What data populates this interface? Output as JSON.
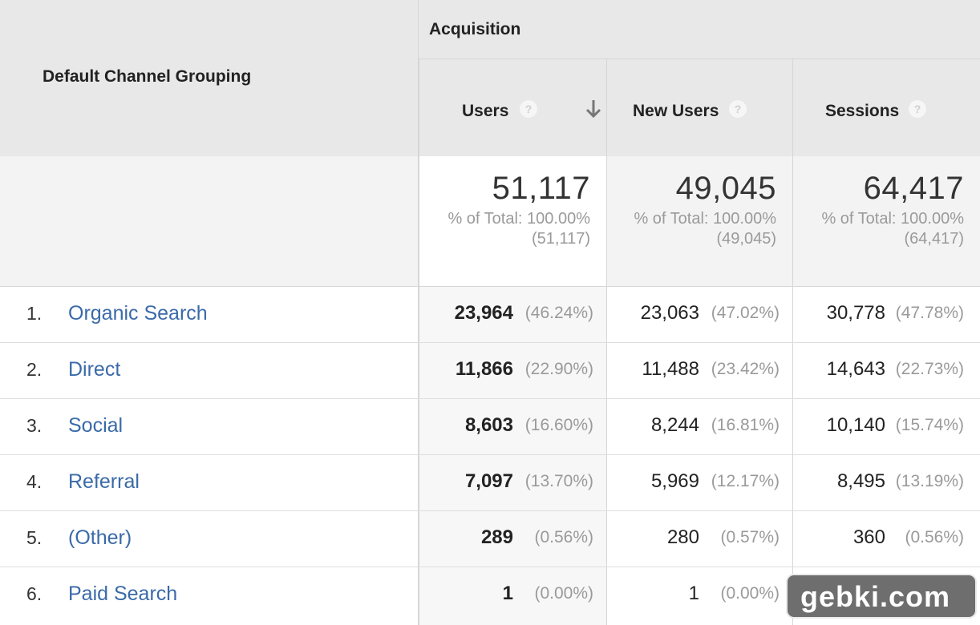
{
  "header": {
    "dimension_label": "Default Channel Grouping",
    "group_label": "Acquisition",
    "columns": [
      {
        "label": "Users",
        "help": "?"
      },
      {
        "label": "New Users",
        "help": "?"
      },
      {
        "label": "Sessions",
        "help": "?"
      }
    ]
  },
  "totals": [
    {
      "value": "51,117",
      "pct_line": "% of Total: 100.00%",
      "abs_line": "(51,117)"
    },
    {
      "value": "49,045",
      "pct_line": "% of Total: 100.00%",
      "abs_line": "(49,045)"
    },
    {
      "value": "64,417",
      "pct_line": "% of Total: 100.00%",
      "abs_line": "(64,417)"
    }
  ],
  "rows": [
    {
      "index": "1.",
      "channel": "Organic Search",
      "users": "23,964",
      "users_pct": "(46.24%)",
      "new_users": "23,063",
      "new_users_pct": "(47.02%)",
      "sessions": "30,778",
      "sessions_pct": "(47.78%)"
    },
    {
      "index": "2.",
      "channel": "Direct",
      "users": "11,866",
      "users_pct": "(22.90%)",
      "new_users": "11,488",
      "new_users_pct": "(23.42%)",
      "sessions": "14,643",
      "sessions_pct": "(22.73%)"
    },
    {
      "index": "3.",
      "channel": "Social",
      "users": "8,603",
      "users_pct": "(16.60%)",
      "new_users": "8,244",
      "new_users_pct": "(16.81%)",
      "sessions": "10,140",
      "sessions_pct": "(15.74%)"
    },
    {
      "index": "4.",
      "channel": "Referral",
      "users": "7,097",
      "users_pct": "(13.70%)",
      "new_users": "5,969",
      "new_users_pct": "(12.17%)",
      "sessions": "8,495",
      "sessions_pct": "(13.19%)"
    },
    {
      "index": "5.",
      "channel": "(Other)",
      "users": "289",
      "users_pct": "(0.56%)",
      "new_users": "280",
      "new_users_pct": "(0.57%)",
      "sessions": "360",
      "sessions_pct": "(0.56%)"
    },
    {
      "index": "6.",
      "channel": "Paid Search",
      "users": "1",
      "users_pct": "(0.00%)",
      "new_users": "1",
      "new_users_pct": "(0.00%)",
      "sessions": "",
      "sessions_pct": ""
    }
  ],
  "watermark": "gebki.com",
  "colors": {
    "link": "#3a6aa8",
    "header_bg": "#e8e8e8",
    "muted": "#9a9a9a"
  },
  "icons": {
    "sort": "arrow-down-icon",
    "help": "question-mark-icon"
  }
}
